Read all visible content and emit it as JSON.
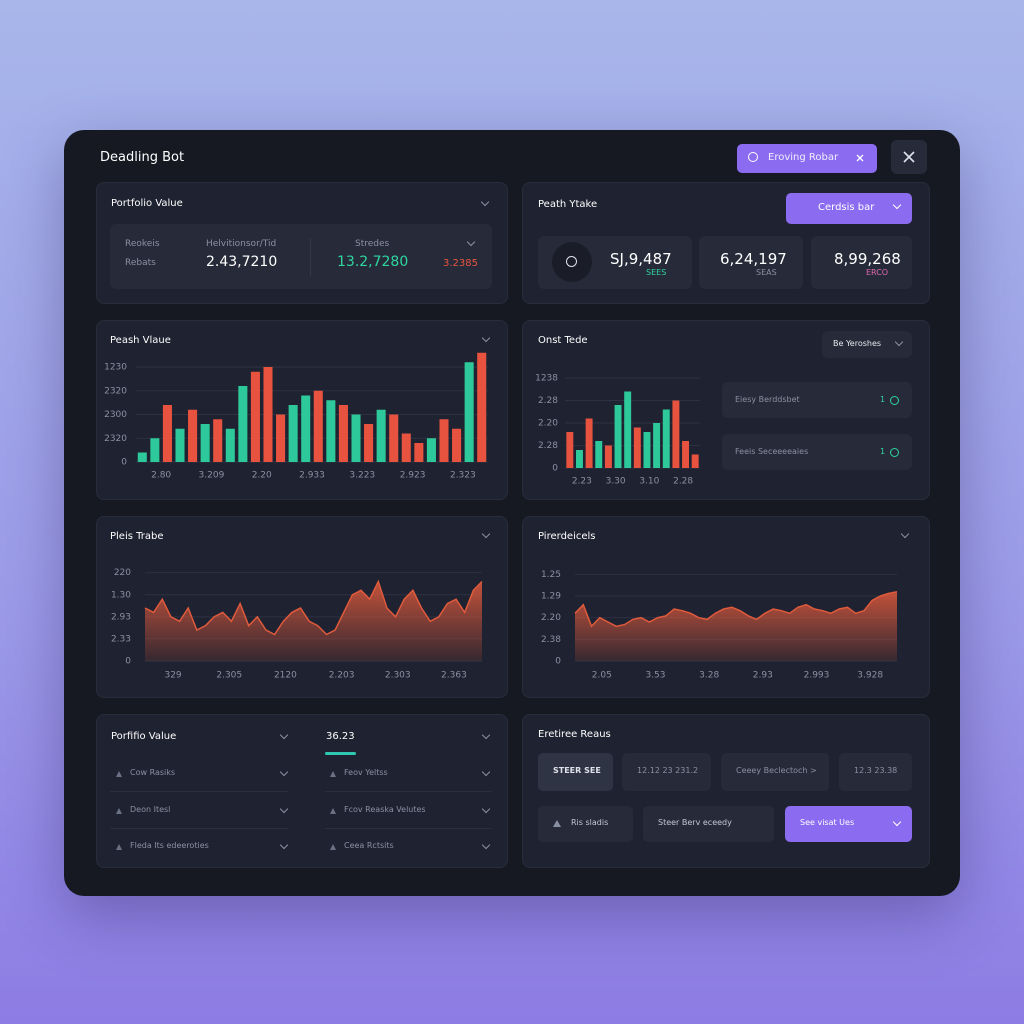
{
  "header": {
    "title": "Deadling Bot",
    "search": "Eroving Robar"
  },
  "portfolio": {
    "title": "Portfolio Value",
    "label_a": "Reokeis",
    "label_b": "Rebats",
    "col1_label": "Helvitionsor/Tid",
    "col1_value": "2.43,7210",
    "col2_label": "Stredes",
    "col2_value": "13.2,7280",
    "col3_value": "3.2385"
  },
  "peak": {
    "title": "Peath Ytake",
    "dropdown": "Cerdsis bar",
    "cards": [
      {
        "value": "SJ,9,487",
        "sub": "SEES"
      },
      {
        "value": "6,24,197",
        "sub": "SEAS"
      },
      {
        "value": "8,99,268",
        "sub": "ERCO"
      }
    ]
  },
  "trade_side": {
    "dropdown": "Be Yeroshes",
    "rows": [
      {
        "label": "Eiesy Berddsbet",
        "badge": "1"
      },
      {
        "label": "Feeis Seceeeeaies",
        "badge": "1"
      }
    ]
  },
  "bottom_left": {
    "title": "Porfifio Value",
    "tab": "36.23",
    "left_items": [
      "Cow Rasiks",
      "Deon Itesl",
      "Fleda Its edeeroties"
    ],
    "right_items": [
      "Feov Yeltss",
      "Fcov Reaska Velutes",
      "Ceea Rctsits"
    ]
  },
  "bottom_right": {
    "title": "Eretiree Reaus",
    "buttons": [
      "STEER SEE",
      "12.12 23 231.2",
      "Ceeey Beclectoch >",
      "12.3 23.38",
      "Ris sladis",
      "Steer Berv eceedy",
      "See visat Ues"
    ]
  },
  "chart_data": [
    {
      "type": "bar",
      "title": "Peash Vlaue",
      "ylim": [
        0,
        120
      ],
      "yticks": [
        {
          "value": 100,
          "label": "1230"
        },
        {
          "value": 75,
          "label": "2320"
        },
        {
          "value": 50,
          "label": "2300"
        },
        {
          "value": 25,
          "label": "2320"
        },
        0
      ],
      "xlabels": [
        "2.80",
        "3.209",
        "2.20",
        "2.933",
        "3.223",
        "2.923",
        "2.323"
      ],
      "series": [
        {
          "color": "#2ec99a",
          "values": [
            10,
            25,
            null,
            35,
            null,
            40,
            null,
            35,
            80,
            null,
            null,
            null,
            60,
            70,
            null,
            65,
            null,
            50,
            null,
            55,
            null,
            null,
            null,
            25,
            null,
            null,
            105,
            null
          ]
        },
        {
          "color": "#e8533f",
          "values": [
            null,
            null,
            60,
            null,
            55,
            null,
            45,
            null,
            null,
            95,
            100,
            50,
            null,
            null,
            75,
            null,
            60,
            null,
            40,
            null,
            50,
            30,
            20,
            null,
            45,
            35,
            null,
            115
          ]
        }
      ]
    },
    {
      "type": "bar",
      "title": "Onst Tede",
      "ylim": [
        0,
        120
      ],
      "yticks": [
        {
          "value": 100,
          "label": "1238"
        },
        {
          "value": 75,
          "label": "2.28"
        },
        {
          "value": 50,
          "label": "2.20"
        },
        {
          "value": 25,
          "label": "2.28"
        },
        0
      ],
      "xlabels": [
        "2.23",
        "3.30",
        "3.10",
        "2.28"
      ],
      "series": [
        {
          "color": "#2ec99a",
          "values": [
            null,
            20,
            null,
            30,
            null,
            70,
            85,
            null,
            40,
            50,
            65,
            null,
            null,
            null
          ]
        },
        {
          "color": "#e8533f",
          "values": [
            40,
            null,
            55,
            null,
            25,
            null,
            null,
            45,
            null,
            null,
            null,
            75,
            30,
            15
          ]
        }
      ]
    },
    {
      "type": "area",
      "title": "Pleis Trabe",
      "ylim": [
        0,
        120
      ],
      "yticks": [
        {
          "value": 100,
          "label": "220"
        },
        {
          "value": 75,
          "label": "1.30"
        },
        {
          "value": 50,
          "label": "2.93"
        },
        {
          "value": 25,
          "label": "2.33"
        },
        0
      ],
      "xlabels": [
        "329",
        "2.305",
        "2120",
        "2.203",
        "2.303",
        "2.363"
      ],
      "series": [
        {
          "color": "#e05a3c",
          "values": [
            60,
            55,
            70,
            50,
            45,
            60,
            35,
            40,
            50,
            55,
            45,
            65,
            40,
            50,
            35,
            30,
            45,
            55,
            60,
            45,
            40,
            30,
            35,
            55,
            75,
            80,
            70,
            90,
            60,
            50,
            70,
            80,
            60,
            45,
            50,
            65,
            70,
            55,
            80,
            90
          ]
        }
      ]
    },
    {
      "type": "area",
      "title": "Pirerdeicels",
      "ylim": [
        0,
        120
      ],
      "yticks": [
        {
          "value": 100,
          "label": "1.25"
        },
        {
          "value": 75,
          "label": "1.29"
        },
        {
          "value": 50,
          "label": "2.20"
        },
        {
          "value": 25,
          "label": "2.38"
        },
        0
      ],
      "xlabels": [
        "2.05",
        "3.53",
        "3.28",
        "2.93",
        "2.993",
        "3.928"
      ],
      "series": [
        {
          "color": "#e05a3c",
          "values": [
            55,
            65,
            40,
            50,
            45,
            40,
            42,
            48,
            50,
            45,
            50,
            52,
            60,
            58,
            55,
            50,
            48,
            55,
            60,
            62,
            58,
            52,
            48,
            55,
            60,
            58,
            55,
            62,
            65,
            60,
            58,
            55,
            60,
            62,
            55,
            58,
            70,
            75,
            78,
            80
          ]
        }
      ]
    }
  ]
}
